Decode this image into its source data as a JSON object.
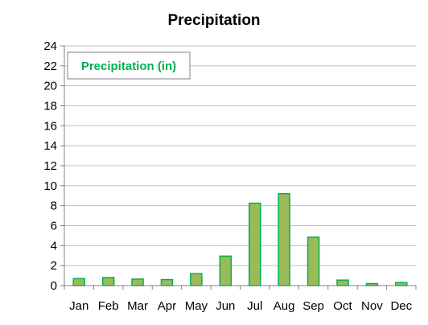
{
  "chart_data": {
    "type": "bar",
    "title": "Precipitation",
    "xlabel": "",
    "ylabel": "",
    "categories": [
      "Jan",
      "Feb",
      "Mar",
      "Apr",
      "May",
      "Jun",
      "Jul",
      "Aug",
      "Sep",
      "Oct",
      "Nov",
      "Dec"
    ],
    "series": [
      {
        "name": "Precipitation (in)",
        "values": [
          0.7,
          0.8,
          0.65,
          0.6,
          1.2,
          2.95,
          8.25,
          9.2,
          4.85,
          0.55,
          0.2,
          0.3
        ]
      }
    ],
    "ylim": [
      0,
      24
    ],
    "yticks": [
      0,
      2,
      4,
      6,
      8,
      10,
      12,
      14,
      16,
      18,
      20,
      22,
      24
    ],
    "grid": true,
    "legend_position": "top-left",
    "colors": {
      "bar_fill": "#9bbb59",
      "bar_stroke": "#00b050",
      "legend_text": "#00b050",
      "grid": "#bfbfbf",
      "axis": "#808080"
    }
  }
}
